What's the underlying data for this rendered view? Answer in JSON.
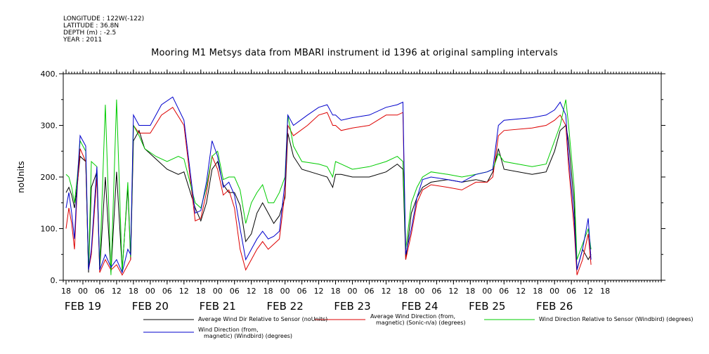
{
  "meta": {
    "longitude": "LONGITUDE : 122W(-122)",
    "latitude": "LATITUDE : 36.8N",
    "depth": "DEPTH (m) : -2.5",
    "year": "YEAR : 2011"
  },
  "chart_data": {
    "type": "line",
    "title": "Mooring M1 Metsys data from MBARI instrument id 1396 at original sampling intervals",
    "ylabel": "noUnits",
    "xlabel": "",
    "ylim": [
      0,
      400
    ],
    "yticks": [
      "0.",
      "100.",
      "200.",
      "300.",
      "400."
    ],
    "xlim_hours": [
      -7,
      206
    ],
    "hour_tick_labels": [
      "18",
      "00",
      "06",
      "12",
      "18",
      "00",
      "06",
      "12",
      "18",
      "00",
      "06",
      "12",
      "18",
      "00",
      "06",
      "12",
      "18",
      "00",
      "06",
      "12",
      "18",
      "00",
      "06",
      "12",
      "18",
      "00",
      "06",
      "12",
      "18",
      "00",
      "06",
      "12",
      "18"
    ],
    "day_labels": [
      "FEB 19",
      "FEB 20",
      "FEB 21",
      "FEB 22",
      "FEB 23",
      "FEB 24",
      "FEB 25",
      "FEB 26"
    ],
    "grid": false,
    "legend_placement": "bottom",
    "series": [
      {
        "name": "Average Wind Dir Relative to Sensor (noUnits)",
        "color": "#000000",
        "points": [
          [
            -6,
            170
          ],
          [
            -5,
            180
          ],
          [
            -4,
            165
          ],
          [
            -3,
            140
          ],
          [
            -2,
            185
          ],
          [
            -1,
            240
          ],
          [
            1,
            230
          ],
          [
            2,
            15
          ],
          [
            3,
            180
          ],
          [
            5,
            210
          ],
          [
            6,
            20
          ],
          [
            8,
            200
          ],
          [
            10,
            15
          ],
          [
            12,
            210
          ],
          [
            14,
            20
          ],
          [
            16,
            180
          ],
          [
            17,
            40
          ],
          [
            18,
            270
          ],
          [
            20,
            290
          ],
          [
            22,
            255
          ],
          [
            26,
            235
          ],
          [
            30,
            215
          ],
          [
            34,
            205
          ],
          [
            36,
            210
          ],
          [
            40,
            140
          ],
          [
            42,
            115
          ],
          [
            44,
            150
          ],
          [
            46,
            215
          ],
          [
            48,
            230
          ],
          [
            50,
            185
          ],
          [
            52,
            170
          ],
          [
            54,
            170
          ],
          [
            56,
            145
          ],
          [
            58,
            75
          ],
          [
            60,
            90
          ],
          [
            62,
            130
          ],
          [
            64,
            150
          ],
          [
            66,
            130
          ],
          [
            68,
            110
          ],
          [
            70,
            125
          ],
          [
            72,
            160
          ],
          [
            73,
            285
          ],
          [
            75,
            240
          ],
          [
            78,
            215
          ],
          [
            84,
            205
          ],
          [
            87,
            200
          ],
          [
            89,
            180
          ],
          [
            90,
            205
          ],
          [
            92,
            205
          ],
          [
            96,
            200
          ],
          [
            102,
            200
          ],
          [
            108,
            210
          ],
          [
            112,
            225
          ],
          [
            114,
            215
          ],
          [
            115,
            40
          ],
          [
            117,
            130
          ],
          [
            119,
            160
          ],
          [
            121,
            180
          ],
          [
            124,
            190
          ],
          [
            130,
            195
          ],
          [
            135,
            190
          ],
          [
            140,
            195
          ],
          [
            144,
            190
          ],
          [
            146,
            210
          ],
          [
            148,
            255
          ],
          [
            150,
            215
          ],
          [
            160,
            205
          ],
          [
            165,
            210
          ],
          [
            168,
            250
          ],
          [
            170,
            290
          ],
          [
            172,
            300
          ],
          [
            173,
            270
          ],
          [
            175,
            150
          ],
          [
            176,
            20
          ],
          [
            178,
            60
          ],
          [
            180,
            40
          ],
          [
            181,
            50
          ]
        ]
      },
      {
        "name": "Average Wind Direction (from, magnetic) (Sonic-n/a) (degrees)",
        "color": "#dd0000",
        "points": [
          [
            -6,
            100
          ],
          [
            -5,
            140
          ],
          [
            -4,
            110
          ],
          [
            -3,
            60
          ],
          [
            -2,
            180
          ],
          [
            -1,
            255
          ],
          [
            1,
            230
          ],
          [
            2,
            20
          ],
          [
            3,
            50
          ],
          [
            5,
            200
          ],
          [
            6,
            15
          ],
          [
            8,
            40
          ],
          [
            10,
            20
          ],
          [
            12,
            30
          ],
          [
            14,
            10
          ],
          [
            16,
            30
          ],
          [
            17,
            40
          ],
          [
            18,
            300
          ],
          [
            20,
            285
          ],
          [
            24,
            285
          ],
          [
            28,
            320
          ],
          [
            32,
            335
          ],
          [
            36,
            300
          ],
          [
            40,
            115
          ],
          [
            42,
            120
          ],
          [
            44,
            170
          ],
          [
            46,
            240
          ],
          [
            48,
            215
          ],
          [
            50,
            165
          ],
          [
            52,
            175
          ],
          [
            54,
            140
          ],
          [
            56,
            60
          ],
          [
            58,
            20
          ],
          [
            60,
            40
          ],
          [
            62,
            60
          ],
          [
            64,
            75
          ],
          [
            66,
            60
          ],
          [
            68,
            70
          ],
          [
            70,
            80
          ],
          [
            72,
            170
          ],
          [
            73,
            300
          ],
          [
            75,
            280
          ],
          [
            80,
            300
          ],
          [
            84,
            320
          ],
          [
            87,
            325
          ],
          [
            89,
            300
          ],
          [
            90,
            300
          ],
          [
            92,
            290
          ],
          [
            96,
            295
          ],
          [
            102,
            300
          ],
          [
            108,
            320
          ],
          [
            112,
            320
          ],
          [
            114,
            325
          ],
          [
            115,
            40
          ],
          [
            117,
            90
          ],
          [
            119,
            150
          ],
          [
            121,
            175
          ],
          [
            124,
            185
          ],
          [
            130,
            180
          ],
          [
            135,
            175
          ],
          [
            140,
            190
          ],
          [
            144,
            190
          ],
          [
            146,
            200
          ],
          [
            148,
            280
          ],
          [
            150,
            290
          ],
          [
            160,
            295
          ],
          [
            165,
            300
          ],
          [
            168,
            310
          ],
          [
            170,
            320
          ],
          [
            172,
            300
          ],
          [
            173,
            220
          ],
          [
            175,
            100
          ],
          [
            176,
            10
          ],
          [
            178,
            40
          ],
          [
            180,
            90
          ],
          [
            181,
            30
          ]
        ]
      },
      {
        "name": "Wind Direction Relative to Sensor (Windbird) (degrees)",
        "color": "#00cc00",
        "points": [
          [
            -6,
            205
          ],
          [
            -5,
            200
          ],
          [
            -4,
            180
          ],
          [
            -3,
            150
          ],
          [
            -2,
            200
          ],
          [
            -1,
            270
          ],
          [
            1,
            250
          ],
          [
            2,
            20
          ],
          [
            3,
            230
          ],
          [
            5,
            220
          ],
          [
            6,
            25
          ],
          [
            8,
            340
          ],
          [
            10,
            10
          ],
          [
            12,
            350
          ],
          [
            14,
            15
          ],
          [
            16,
            190
          ],
          [
            17,
            45
          ],
          [
            18,
            300
          ],
          [
            20,
            280
          ],
          [
            22,
            255
          ],
          [
            26,
            240
          ],
          [
            30,
            230
          ],
          [
            34,
            240
          ],
          [
            36,
            235
          ],
          [
            40,
            150
          ],
          [
            42,
            140
          ],
          [
            44,
            180
          ],
          [
            46,
            240
          ],
          [
            48,
            250
          ],
          [
            50,
            195
          ],
          [
            52,
            200
          ],
          [
            54,
            200
          ],
          [
            56,
            175
          ],
          [
            58,
            110
          ],
          [
            60,
            150
          ],
          [
            62,
            170
          ],
          [
            64,
            185
          ],
          [
            66,
            150
          ],
          [
            68,
            150
          ],
          [
            70,
            170
          ],
          [
            72,
            200
          ],
          [
            73,
            320
          ],
          [
            75,
            260
          ],
          [
            78,
            230
          ],
          [
            84,
            225
          ],
          [
            87,
            220
          ],
          [
            89,
            200
          ],
          [
            90,
            230
          ],
          [
            92,
            225
          ],
          [
            96,
            215
          ],
          [
            102,
            220
          ],
          [
            108,
            230
          ],
          [
            112,
            240
          ],
          [
            114,
            230
          ],
          [
            115,
            60
          ],
          [
            117,
            150
          ],
          [
            119,
            180
          ],
          [
            121,
            200
          ],
          [
            124,
            210
          ],
          [
            130,
            205
          ],
          [
            135,
            200
          ],
          [
            140,
            205
          ],
          [
            144,
            210
          ],
          [
            146,
            215
          ],
          [
            148,
            245
          ],
          [
            150,
            230
          ],
          [
            160,
            220
          ],
          [
            165,
            225
          ],
          [
            168,
            270
          ],
          [
            170,
            300
          ],
          [
            172,
            350
          ],
          [
            173,
            300
          ],
          [
            175,
            180
          ],
          [
            176,
            40
          ],
          [
            178,
            70
          ],
          [
            180,
            100
          ],
          [
            181,
            60
          ]
        ]
      },
      {
        "name": "Wind Direction (from, magnetic) (Windbird) (degrees)",
        "color": "#0000cc",
        "points": [
          [
            -6,
            140
          ],
          [
            -5,
            170
          ],
          [
            -4,
            130
          ],
          [
            -3,
            80
          ],
          [
            -2,
            190
          ],
          [
            -1,
            280
          ],
          [
            1,
            260
          ],
          [
            2,
            20
          ],
          [
            3,
            60
          ],
          [
            5,
            220
          ],
          [
            6,
            20
          ],
          [
            8,
            50
          ],
          [
            10,
            25
          ],
          [
            12,
            40
          ],
          [
            14,
            15
          ],
          [
            16,
            60
          ],
          [
            17,
            50
          ],
          [
            18,
            320
          ],
          [
            20,
            300
          ],
          [
            24,
            300
          ],
          [
            28,
            340
          ],
          [
            32,
            355
          ],
          [
            36,
            310
          ],
          [
            40,
            130
          ],
          [
            42,
            135
          ],
          [
            44,
            190
          ],
          [
            46,
            270
          ],
          [
            48,
            240
          ],
          [
            50,
            180
          ],
          [
            52,
            190
          ],
          [
            54,
            165
          ],
          [
            56,
            100
          ],
          [
            58,
            40
          ],
          [
            60,
            60
          ],
          [
            62,
            80
          ],
          [
            64,
            95
          ],
          [
            66,
            80
          ],
          [
            68,
            85
          ],
          [
            70,
            95
          ],
          [
            72,
            190
          ],
          [
            73,
            320
          ],
          [
            75,
            300
          ],
          [
            80,
            320
          ],
          [
            84,
            335
          ],
          [
            87,
            340
          ],
          [
            89,
            320
          ],
          [
            90,
            320
          ],
          [
            92,
            310
          ],
          [
            96,
            315
          ],
          [
            102,
            320
          ],
          [
            108,
            335
          ],
          [
            112,
            340
          ],
          [
            114,
            345
          ],
          [
            115,
            50
          ],
          [
            117,
            100
          ],
          [
            119,
            160
          ],
          [
            121,
            195
          ],
          [
            124,
            200
          ],
          [
            130,
            195
          ],
          [
            135,
            190
          ],
          [
            140,
            205
          ],
          [
            144,
            210
          ],
          [
            146,
            215
          ],
          [
            148,
            300
          ],
          [
            150,
            310
          ],
          [
            160,
            315
          ],
          [
            165,
            320
          ],
          [
            168,
            330
          ],
          [
            170,
            345
          ],
          [
            172,
            320
          ],
          [
            173,
            240
          ],
          [
            175,
            120
          ],
          [
            176,
            20
          ],
          [
            178,
            60
          ],
          [
            180,
            120
          ],
          [
            181,
            40
          ]
        ]
      }
    ]
  },
  "legend": [
    {
      "color": "#000000",
      "line1": "Average Wind Dir Relative to Sensor (noUnits)",
      "line2": ""
    },
    {
      "color": "#dd0000",
      "line1": "Average Wind Direction (from,",
      "line2": "magnetic) (Sonic-n/a) (degrees)"
    },
    {
      "color": "#00cc00",
      "line1": "Wind Direction Relative to Sensor (Windbird) (degrees)",
      "line2": ""
    },
    {
      "color": "#0000cc",
      "line1": "Wind Direction (from,",
      "line2": "magnetic) (Windbird) (degrees)"
    }
  ]
}
